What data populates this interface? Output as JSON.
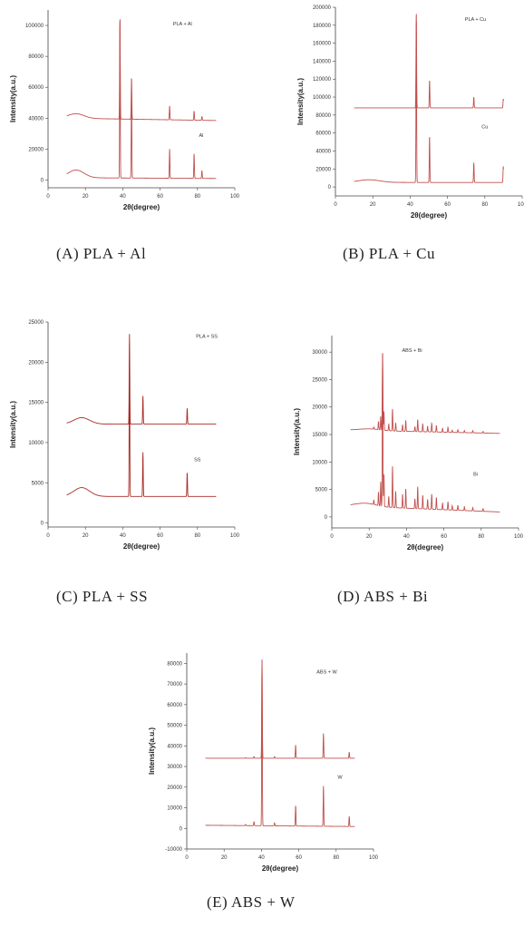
{
  "chart_data": [
    {
      "id": "A",
      "type": "line",
      "caption": "(A) PLA + Al",
      "xlabel": "2θ(degree)",
      "ylabel": "Intensity(a.u.)",
      "xlim": [
        0,
        100
      ],
      "ylim": [
        -5000,
        110000
      ],
      "xticks": [
        0,
        20,
        40,
        60,
        80,
        100
      ],
      "yticks": [
        0,
        20000,
        40000,
        60000,
        80000,
        100000
      ],
      "color": "#c0504d",
      "x_range": [
        10,
        90
      ],
      "series": [
        {
          "name": "PLA + Al",
          "baseline": 40000,
          "hump": 3000,
          "hump_center": 15,
          "hump_width": 6,
          "tail_drop": 1500,
          "peaks": [
            [
              38.5,
              66000
            ],
            [
              44.7,
              27000
            ],
            [
              65.1,
              9000
            ],
            [
              78.2,
              6000
            ],
            [
              82.4,
              2500
            ]
          ]
        },
        {
          "name": "Al",
          "baseline": 1500,
          "hump": 5000,
          "hump_center": 15,
          "hump_width": 6,
          "tail_drop": 500,
          "peaks": [
            [
              38.5,
              104000
            ],
            [
              44.7,
              60000
            ],
            [
              65.1,
              19000
            ],
            [
              78.2,
              16000
            ],
            [
              82.4,
              5000
            ]
          ]
        }
      ],
      "legend_labels": [
        {
          "text": "PLA + Al",
          "x": 72,
          "y": 100000
        },
        {
          "text": "Al",
          "x": 82,
          "y": 28000
        }
      ]
    },
    {
      "id": "B",
      "type": "line",
      "caption": "(B) PLA + Cu",
      "xlabel": "2θ(degree)",
      "ylabel": "Intensity(a.u.)",
      "xlim": [
        0,
        100
      ],
      "ylim": [
        -10000,
        200000
      ],
      "xticks": [
        0,
        20,
        40,
        60,
        80,
        100
      ],
      "yticks": [
        0,
        20000,
        40000,
        60000,
        80000,
        100000,
        120000,
        140000,
        160000,
        180000,
        200000
      ],
      "color": "#c0504d",
      "x_range": [
        10,
        90
      ],
      "series": [
        {
          "name": "PLA + Cu",
          "baseline": 88000,
          "hump": 0,
          "hump_center": 15,
          "hump_width": 6,
          "tail_drop": 0,
          "peaks": [
            [
              43.3,
              107000
            ],
            [
              50.4,
              31000
            ],
            [
              74.1,
              12000
            ],
            [
              89.9,
              10000
            ]
          ]
        },
        {
          "name": "Cu",
          "baseline": 5000,
          "hump": 3000,
          "hump_center": 18,
          "hump_width": 8,
          "tail_drop": 0,
          "peaks": [
            [
              43.3,
              183000
            ],
            [
              50.4,
              52000
            ],
            [
              74.1,
              22000
            ],
            [
              89.9,
              18000
            ]
          ]
        }
      ],
      "legend_labels": [
        {
          "text": "PLA + Cu",
          "x": 75,
          "y": 185000
        },
        {
          "text": "Cu",
          "x": 80,
          "y": 65000
        }
      ]
    },
    {
      "id": "C",
      "type": "line",
      "caption": "(C) PLA + SS",
      "xlabel": "2θ(degree)",
      "ylabel": "Intensity(a.u.)",
      "xlim": [
        0,
        100
      ],
      "ylim": [
        -500,
        25000
      ],
      "xticks": [
        0,
        20,
        40,
        60,
        80,
        100
      ],
      "yticks": [
        0,
        5000,
        10000,
        15000,
        20000,
        25000
      ],
      "color": "#a92a24",
      "x_range": [
        10,
        90
      ],
      "series": [
        {
          "name": "PLA + SS",
          "baseline": 12300,
          "hump": 800,
          "hump_center": 18,
          "hump_width": 6,
          "tail_drop": 0,
          "peaks": [
            [
              43.6,
              11200
            ],
            [
              50.8,
              3500
            ],
            [
              74.5,
              2000
            ]
          ]
        },
        {
          "name": "SS",
          "baseline": 3300,
          "hump": 1100,
          "hump_center": 18,
          "hump_width": 6,
          "tail_drop": 0,
          "peaks": [
            [
              43.6,
              17000
            ],
            [
              50.8,
              5500
            ],
            [
              74.5,
              3000
            ]
          ]
        }
      ],
      "legend_labels": [
        {
          "text": "PLA + SS",
          "x": 85,
          "y": 23000
        },
        {
          "text": "SS",
          "x": 80,
          "y": 7700
        }
      ]
    },
    {
      "id": "D",
      "type": "line",
      "caption": "(D) ABS + Bi",
      "xlabel": "2θ(degree)",
      "ylabel": "Intensity(a.u.)",
      "xlim": [
        0,
        100
      ],
      "ylim": [
        -2000,
        33000
      ],
      "xticks": [
        0,
        20,
        40,
        60,
        80,
        100
      ],
      "yticks": [
        0,
        5000,
        10000,
        15000,
        20000,
        25000,
        30000
      ],
      "color": "#c0504d",
      "x_range": [
        10,
        90
      ],
      "series": [
        {
          "name": "ABS + Bi",
          "baseline": 15800,
          "hump": 300,
          "hump_center": 20,
          "hump_width": 8,
          "tail_drop": 600,
          "peaks": [
            [
              22.5,
              400
            ],
            [
              25.0,
              1500
            ],
            [
              26.2,
              2500
            ],
            [
              27.2,
              14500
            ],
            [
              27.9,
              3500
            ],
            [
              30.5,
              1200
            ],
            [
              32.5,
              4000
            ],
            [
              34.2,
              1500
            ],
            [
              37.9,
              1200
            ],
            [
              39.6,
              2000
            ],
            [
              44.5,
              900
            ],
            [
              46.0,
              2200
            ],
            [
              48.7,
              1400
            ],
            [
              51.3,
              1000
            ],
            [
              53.5,
              1600
            ],
            [
              56.0,
              1200
            ],
            [
              59.3,
              700
            ],
            [
              62.2,
              900
            ],
            [
              64.5,
              400
            ],
            [
              67.5,
              500
            ],
            [
              71.0,
              400
            ],
            [
              75.5,
              400
            ],
            [
              81.0,
              300
            ]
          ]
        },
        {
          "name": "Bi",
          "baseline": 2000,
          "hump": 600,
          "hump_center": 18,
          "hump_width": 8,
          "tail_drop": 1100,
          "peaks": [
            [
              22.5,
              800
            ],
            [
              25.0,
              2500
            ],
            [
              26.2,
              4500
            ],
            [
              27.2,
              26500
            ],
            [
              27.9,
              6000
            ],
            [
              30.5,
              2000
            ],
            [
              32.5,
              7500
            ],
            [
              34.2,
              3000
            ],
            [
              37.9,
              2500
            ],
            [
              39.6,
              3500
            ],
            [
              44.5,
              1800
            ],
            [
              46.0,
              4000
            ],
            [
              48.7,
              2500
            ],
            [
              51.3,
              1800
            ],
            [
              53.5,
              2800
            ],
            [
              56.0,
              2200
            ],
            [
              59.3,
              1200
            ],
            [
              62.2,
              1500
            ],
            [
              64.5,
              800
            ],
            [
              67.5,
              900
            ],
            [
              71.0,
              700
            ],
            [
              75.5,
              600
            ],
            [
              81.0,
              500
            ]
          ]
        }
      ],
      "legend_labels": [
        {
          "text": "ABS + Bi",
          "x": 43,
          "y": 30000
        },
        {
          "text": "Bi",
          "x": 77,
          "y": 7500
        }
      ]
    },
    {
      "id": "E",
      "type": "line",
      "caption": "(E) ABS + W",
      "xlabel": "2θ(degree)",
      "ylabel": "Intensity(a.u.)",
      "xlim": [
        0,
        100
      ],
      "ylim": [
        -10000,
        85000
      ],
      "xticks": [
        0,
        20,
        40,
        60,
        80,
        100
      ],
      "yticks": [
        -10000,
        0,
        10000,
        20000,
        30000,
        40000,
        50000,
        60000,
        70000,
        80000
      ],
      "color": "#c0504d",
      "x_range": [
        10,
        90
      ],
      "series": [
        {
          "name": "ABS + W",
          "baseline": 34000,
          "hump": 0,
          "hump_center": 20,
          "hump_width": 8,
          "tail_drop": 0,
          "peaks": [
            [
              31.5,
              300
            ],
            [
              36.0,
              800
            ],
            [
              40.3,
              48000
            ],
            [
              47.0,
              800
            ],
            [
              58.3,
              6500
            ],
            [
              73.2,
              12000
            ],
            [
              87.0,
              3000
            ]
          ]
        },
        {
          "name": "W",
          "baseline": 1500,
          "hump": 0,
          "hump_center": 20,
          "hump_width": 8,
          "tail_drop": 600,
          "peaks": [
            [
              31.5,
              600
            ],
            [
              36.0,
              2000
            ],
            [
              40.3,
              80000
            ],
            [
              47.0,
              1500
            ],
            [
              58.3,
              10000
            ],
            [
              73.2,
              19500
            ],
            [
              87.0,
              5000
            ]
          ]
        }
      ],
      "legend_labels": [
        {
          "text": "ABS + W",
          "x": 75,
          "y": 75000
        },
        {
          "text": "W",
          "x": 82,
          "y": 24000
        }
      ]
    }
  ]
}
